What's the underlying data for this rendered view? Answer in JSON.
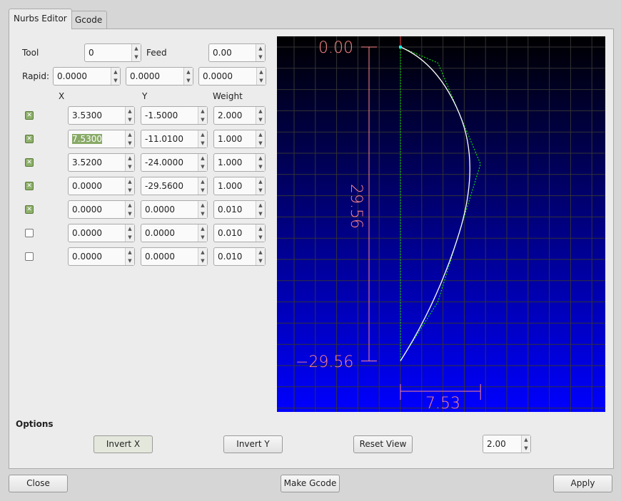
{
  "tabs": [
    {
      "label": "Nurbs Editor",
      "active": true
    },
    {
      "label": "Gcode",
      "active": false
    }
  ],
  "tool": {
    "label": "Tool",
    "value": "0"
  },
  "feed": {
    "label": "Feed",
    "value": "0.00"
  },
  "rapid": {
    "label": "Rapid:",
    "values": [
      "0.0000",
      "0.0000",
      "0.0000"
    ]
  },
  "headers": {
    "x": "X",
    "y": "Y",
    "weight": "Weight"
  },
  "points": [
    {
      "enabled": true,
      "x": "3.5300",
      "y": "-1.5000",
      "w": "2.000"
    },
    {
      "enabled": true,
      "x": "7.5300",
      "y": "-11.0100",
      "w": "1.000",
      "selected": true
    },
    {
      "enabled": true,
      "x": "3.5200",
      "y": "-24.0000",
      "w": "1.000"
    },
    {
      "enabled": true,
      "x": "0.0000",
      "y": "-29.5600",
      "w": "1.000"
    },
    {
      "enabled": true,
      "x": "0.0000",
      "y": "0.0000",
      "w": "0.010"
    },
    {
      "enabled": false,
      "x": "0.0000",
      "y": "0.0000",
      "w": "0.010"
    },
    {
      "enabled": false,
      "x": "0.0000",
      "y": "0.0000",
      "w": "0.010"
    }
  ],
  "preview": {
    "top_label": "0.00",
    "bottom_label": "−29.56",
    "height_label": "29.56",
    "width_label": "7.53",
    "colors": {
      "curve": "#ffffff",
      "polygon": "#00ff00",
      "dimension": "#ff8888",
      "grid": "#333333",
      "bg_top": "#000000",
      "bg_bottom": "#0000ff"
    }
  },
  "options": {
    "title": "Options",
    "invert_x": "Invert X",
    "invert_y": "Invert Y",
    "reset_view": "Reset View",
    "scale": "2.00"
  },
  "footer": {
    "close": "Close",
    "make_gcode": "Make Gcode",
    "apply": "Apply"
  }
}
